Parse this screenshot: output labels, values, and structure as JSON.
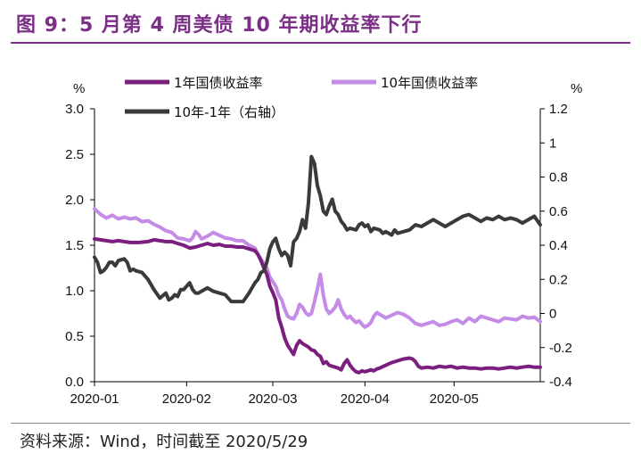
{
  "title": "图 9：5 月第 4 周美债 10 年期收益率下行",
  "source": "资料来源：Wind，时间截至 2020/5/29",
  "chart_data": {
    "type": "line",
    "title": "图 9：5 月第 4 周美债 10 年期收益率下行",
    "left_unit": "%",
    "right_unit": "%",
    "ylim_left": [
      0.0,
      3.0
    ],
    "yticks_left": [
      "0.0",
      "0.5",
      "1.0",
      "1.5",
      "2.0",
      "2.5",
      "3.0"
    ],
    "ylim_right": [
      -0.4,
      1.2
    ],
    "yticks_right": [
      "-0.4",
      "-0.2",
      "0",
      "0.2",
      "0.4",
      "0.6",
      "0.8",
      "1",
      "1.2"
    ],
    "xlim": [
      0,
      150
    ],
    "xticks": [
      {
        "label": "2020-01",
        "x": 0
      },
      {
        "label": "2020-02",
        "x": 31
      },
      {
        "label": "2020-03",
        "x": 60
      },
      {
        "label": "2020-04",
        "x": 91
      },
      {
        "label": "2020-05",
        "x": 121
      }
    ],
    "series": [
      {
        "name": "1年国债收益率",
        "axis": "left",
        "color": "#7b1f7f",
        "points": [
          [
            0,
            1.57
          ],
          [
            2,
            1.56
          ],
          [
            4,
            1.55
          ],
          [
            6,
            1.54
          ],
          [
            8,
            1.55
          ],
          [
            10,
            1.54
          ],
          [
            12,
            1.53
          ],
          [
            15,
            1.53
          ],
          [
            18,
            1.54
          ],
          [
            20,
            1.56
          ],
          [
            22,
            1.55
          ],
          [
            24,
            1.54
          ],
          [
            26,
            1.54
          ],
          [
            28,
            1.52
          ],
          [
            30,
            1.5
          ],
          [
            32,
            1.47
          ],
          [
            34,
            1.48
          ],
          [
            36,
            1.5
          ],
          [
            38,
            1.52
          ],
          [
            40,
            1.5
          ],
          [
            42,
            1.51
          ],
          [
            44,
            1.49
          ],
          [
            46,
            1.49
          ],
          [
            48,
            1.48
          ],
          [
            50,
            1.48
          ],
          [
            52,
            1.46
          ],
          [
            54,
            1.44
          ],
          [
            55,
            1.4
          ],
          [
            56,
            1.33
          ],
          [
            57,
            1.25
          ],
          [
            58,
            1.18
          ],
          [
            59,
            1.05
          ],
          [
            60,
            0.98
          ],
          [
            61,
            0.9
          ],
          [
            62,
            0.7
          ],
          [
            63,
            0.6
          ],
          [
            64,
            0.48
          ],
          [
            65,
            0.4
          ],
          [
            66,
            0.35
          ],
          [
            67,
            0.3
          ],
          [
            68,
            0.4
          ],
          [
            69,
            0.45
          ],
          [
            70,
            0.42
          ],
          [
            71,
            0.4
          ],
          [
            72,
            0.38
          ],
          [
            73,
            0.35
          ],
          [
            74,
            0.34
          ],
          [
            75,
            0.3
          ],
          [
            76,
            0.28
          ],
          [
            77,
            0.2
          ],
          [
            78,
            0.22
          ],
          [
            79,
            0.18
          ],
          [
            80,
            0.17
          ],
          [
            81,
            0.16
          ],
          [
            82,
            0.15
          ],
          [
            83,
            0.13
          ],
          [
            84,
            0.2
          ],
          [
            85,
            0.24
          ],
          [
            86,
            0.18
          ],
          [
            87,
            0.14
          ],
          [
            88,
            0.11
          ],
          [
            89,
            0.1
          ],
          [
            90,
            0.12
          ],
          [
            91,
            0.11
          ],
          [
            92,
            0.12
          ],
          [
            93,
            0.13
          ],
          [
            94,
            0.12
          ],
          [
            95,
            0.14
          ],
          [
            96,
            0.15
          ],
          [
            98,
            0.18
          ],
          [
            100,
            0.21
          ],
          [
            102,
            0.23
          ],
          [
            104,
            0.25
          ],
          [
            106,
            0.26
          ],
          [
            107,
            0.25
          ],
          [
            108,
            0.22
          ],
          [
            109,
            0.17
          ],
          [
            110,
            0.15
          ],
          [
            112,
            0.16
          ],
          [
            114,
            0.15
          ],
          [
            116,
            0.17
          ],
          [
            118,
            0.16
          ],
          [
            120,
            0.17
          ],
          [
            122,
            0.15
          ],
          [
            124,
            0.16
          ],
          [
            126,
            0.15
          ],
          [
            128,
            0.15
          ],
          [
            130,
            0.14
          ],
          [
            132,
            0.15
          ],
          [
            134,
            0.15
          ],
          [
            136,
            0.14
          ],
          [
            138,
            0.15
          ],
          [
            140,
            0.16
          ],
          [
            142,
            0.15
          ],
          [
            144,
            0.16
          ],
          [
            146,
            0.17
          ],
          [
            148,
            0.16
          ],
          [
            150,
            0.16
          ]
        ]
      },
      {
        "name": "10年国债收益率",
        "axis": "left",
        "color": "#c48ce6",
        "points": [
          [
            0,
            1.9
          ],
          [
            2,
            1.84
          ],
          [
            4,
            1.8
          ],
          [
            6,
            1.83
          ],
          [
            8,
            1.79
          ],
          [
            10,
            1.81
          ],
          [
            12,
            1.79
          ],
          [
            14,
            1.8
          ],
          [
            16,
            1.76
          ],
          [
            18,
            1.77
          ],
          [
            20,
            1.73
          ],
          [
            22,
            1.7
          ],
          [
            24,
            1.66
          ],
          [
            26,
            1.64
          ],
          [
            28,
            1.58
          ],
          [
            30,
            1.57
          ],
          [
            32,
            1.55
          ],
          [
            33,
            1.58
          ],
          [
            34,
            1.65
          ],
          [
            35,
            1.62
          ],
          [
            36,
            1.57
          ],
          [
            38,
            1.6
          ],
          [
            40,
            1.64
          ],
          [
            42,
            1.61
          ],
          [
            44,
            1.58
          ],
          [
            46,
            1.57
          ],
          [
            48,
            1.55
          ],
          [
            50,
            1.55
          ],
          [
            52,
            1.5
          ],
          [
            54,
            1.47
          ],
          [
            55,
            1.4
          ],
          [
            56,
            1.35
          ],
          [
            57,
            1.3
          ],
          [
            58,
            1.25
          ],
          [
            59,
            1.15
          ],
          [
            60,
            1.1
          ],
          [
            61,
            1.05
          ],
          [
            62,
            0.95
          ],
          [
            63,
            0.9
          ],
          [
            64,
            0.8
          ],
          [
            65,
            0.72
          ],
          [
            66,
            0.7
          ],
          [
            67,
            0.69
          ],
          [
            68,
            0.75
          ],
          [
            69,
            0.85
          ],
          [
            70,
            0.82
          ],
          [
            71,
            0.76
          ],
          [
            72,
            0.73
          ],
          [
            73,
            0.75
          ],
          [
            74,
            0.88
          ],
          [
            75,
            1.02
          ],
          [
            76,
            1.18
          ],
          [
            77,
            0.95
          ],
          [
            78,
            0.8
          ],
          [
            79,
            0.75
          ],
          [
            80,
            0.78
          ],
          [
            81,
            0.82
          ],
          [
            82,
            0.9
          ],
          [
            83,
            0.8
          ],
          [
            84,
            0.74
          ],
          [
            85,
            0.7
          ],
          [
            86,
            0.72
          ],
          [
            87,
            0.68
          ],
          [
            88,
            0.65
          ],
          [
            89,
            0.67
          ],
          [
            90,
            0.63
          ],
          [
            91,
            0.6
          ],
          [
            92,
            0.62
          ],
          [
            93,
            0.65
          ],
          [
            94,
            0.72
          ],
          [
            95,
            0.76
          ],
          [
            96,
            0.74
          ],
          [
            98,
            0.7
          ],
          [
            100,
            0.73
          ],
          [
            102,
            0.76
          ],
          [
            104,
            0.74
          ],
          [
            106,
            0.7
          ],
          [
            108,
            0.64
          ],
          [
            110,
            0.62
          ],
          [
            112,
            0.64
          ],
          [
            114,
            0.66
          ],
          [
            116,
            0.62
          ],
          [
            118,
            0.63
          ],
          [
            120,
            0.66
          ],
          [
            122,
            0.68
          ],
          [
            124,
            0.64
          ],
          [
            126,
            0.7
          ],
          [
            128,
            0.66
          ],
          [
            130,
            0.72
          ],
          [
            132,
            0.7
          ],
          [
            134,
            0.68
          ],
          [
            136,
            0.66
          ],
          [
            138,
            0.7
          ],
          [
            140,
            0.69
          ],
          [
            142,
            0.68
          ],
          [
            144,
            0.72
          ],
          [
            146,
            0.7
          ],
          [
            148,
            0.71
          ],
          [
            150,
            0.66
          ]
        ]
      },
      {
        "name": "10年-1年（右轴）",
        "axis": "right",
        "color": "#3a3a3a",
        "points": [
          [
            0,
            0.33
          ],
          [
            1,
            0.3
          ],
          [
            2,
            0.24
          ],
          [
            3,
            0.25
          ],
          [
            4,
            0.27
          ],
          [
            5,
            0.3
          ],
          [
            6,
            0.3
          ],
          [
            7,
            0.28
          ],
          [
            8,
            0.31
          ],
          [
            10,
            0.32
          ],
          [
            11,
            0.3
          ],
          [
            12,
            0.25
          ],
          [
            13,
            0.26
          ],
          [
            14,
            0.25
          ],
          [
            16,
            0.24
          ],
          [
            18,
            0.2
          ],
          [
            20,
            0.14
          ],
          [
            22,
            0.09
          ],
          [
            24,
            0.12
          ],
          [
            25,
            0.08
          ],
          [
            26,
            0.09
          ],
          [
            27,
            0.11
          ],
          [
            28,
            0.1
          ],
          [
            29,
            0.14
          ],
          [
            30,
            0.14
          ],
          [
            32,
            0.18
          ],
          [
            33,
            0.14
          ],
          [
            34,
            0.12
          ],
          [
            35,
            0.12
          ],
          [
            36,
            0.13
          ],
          [
            38,
            0.15
          ],
          [
            40,
            0.13
          ],
          [
            42,
            0.12
          ],
          [
            44,
            0.11
          ],
          [
            46,
            0.07
          ],
          [
            48,
            0.07
          ],
          [
            50,
            0.07
          ],
          [
            52,
            0.12
          ],
          [
            53,
            0.15
          ],
          [
            54,
            0.18
          ],
          [
            55,
            0.2
          ],
          [
            56,
            0.24
          ],
          [
            57,
            0.25
          ],
          [
            58,
            0.3
          ],
          [
            59,
            0.38
          ],
          [
            60,
            0.42
          ],
          [
            61,
            0.44
          ],
          [
            62,
            0.38
          ],
          [
            63,
            0.34
          ],
          [
            64,
            0.36
          ],
          [
            65,
            0.34
          ],
          [
            66,
            0.28
          ],
          [
            67,
            0.42
          ],
          [
            68,
            0.44
          ],
          [
            69,
            0.48
          ],
          [
            70,
            0.55
          ],
          [
            71,
            0.5
          ],
          [
            72,
            0.65
          ],
          [
            73,
            0.92
          ],
          [
            74,
            0.88
          ],
          [
            75,
            0.75
          ],
          [
            76,
            0.69
          ],
          [
            77,
            0.6
          ],
          [
            78,
            0.58
          ],
          [
            79,
            0.63
          ],
          [
            80,
            0.67
          ],
          [
            81,
            0.6
          ],
          [
            82,
            0.58
          ],
          [
            83,
            0.54
          ],
          [
            84,
            0.52
          ],
          [
            85,
            0.49
          ],
          [
            86,
            0.5
          ],
          [
            88,
            0.49
          ],
          [
            89,
            0.52
          ],
          [
            90,
            0.53
          ],
          [
            91,
            0.51
          ],
          [
            92,
            0.52
          ],
          [
            93,
            0.48
          ],
          [
            94,
            0.5
          ],
          [
            96,
            0.49
          ],
          [
            97,
            0.47
          ],
          [
            98,
            0.48
          ],
          [
            100,
            0.46
          ],
          [
            101,
            0.49
          ],
          [
            102,
            0.47
          ],
          [
            104,
            0.48
          ],
          [
            106,
            0.49
          ],
          [
            108,
            0.52
          ],
          [
            110,
            0.51
          ],
          [
            112,
            0.53
          ],
          [
            114,
            0.55
          ],
          [
            116,
            0.53
          ],
          [
            118,
            0.51
          ],
          [
            120,
            0.53
          ],
          [
            122,
            0.55
          ],
          [
            124,
            0.57
          ],
          [
            126,
            0.58
          ],
          [
            128,
            0.56
          ],
          [
            130,
            0.54
          ],
          [
            132,
            0.56
          ],
          [
            134,
            0.55
          ],
          [
            136,
            0.57
          ],
          [
            138,
            0.55
          ],
          [
            140,
            0.56
          ],
          [
            142,
            0.55
          ],
          [
            144,
            0.53
          ],
          [
            146,
            0.55
          ],
          [
            148,
            0.57
          ],
          [
            150,
            0.52
          ]
        ]
      }
    ],
    "legend": [
      "1年国债收益率",
      "10年国债收益率",
      "10年-1年（右轴）"
    ],
    "legend_position": "top-left"
  }
}
